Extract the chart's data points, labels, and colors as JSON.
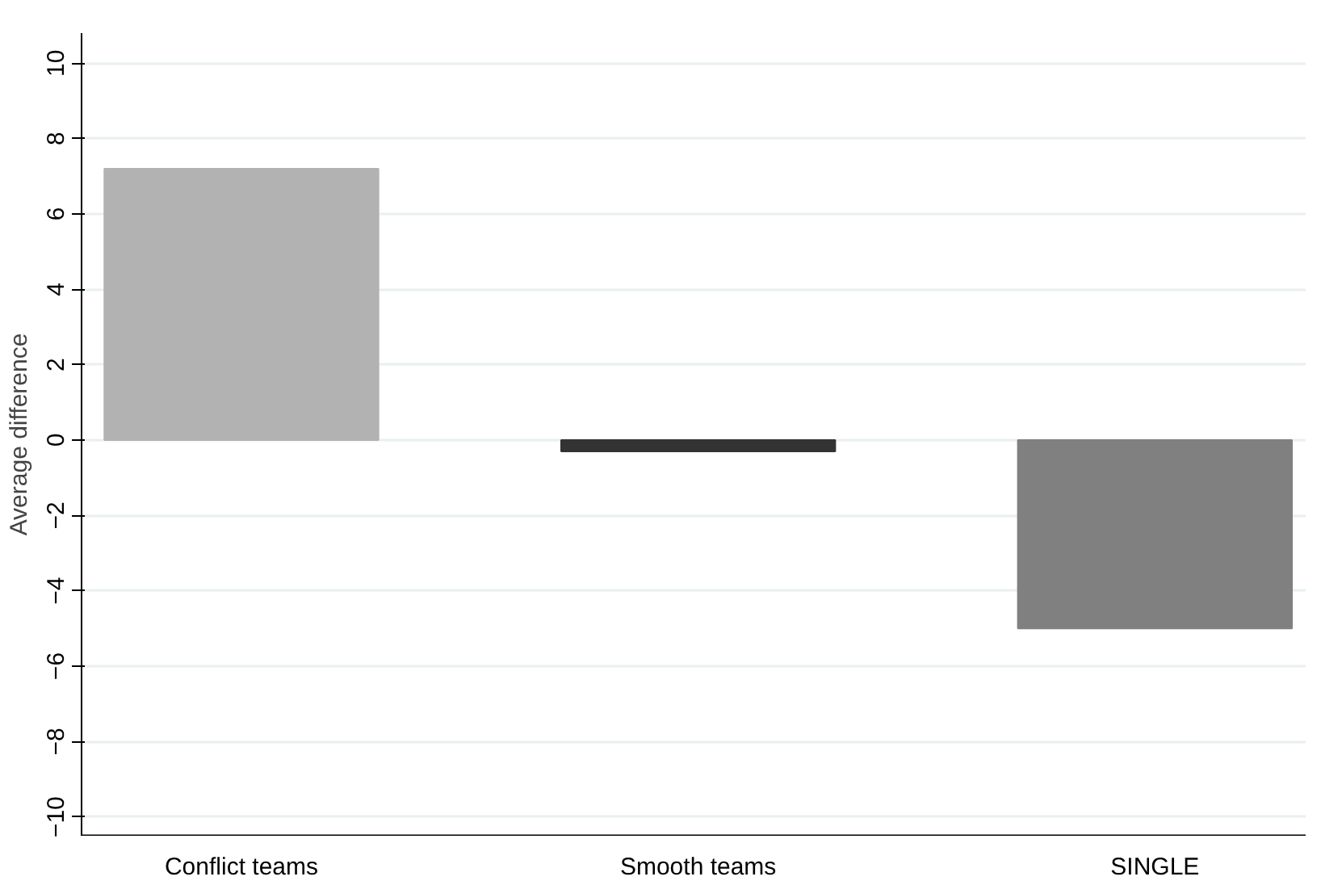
{
  "chart_data": {
    "type": "bar",
    "ylabel": "Average difference",
    "categories": [
      "Conflict teams",
      "Smooth teams",
      "SINGLE"
    ],
    "values": [
      7.2,
      -0.3,
      -5.0
    ],
    "colors": [
      "#b2b2b2",
      "#333333",
      "#808080"
    ],
    "ylim": [
      -10.5,
      10.8
    ],
    "yticks": [
      -10,
      -8,
      -6,
      -4,
      -2,
      0,
      2,
      4,
      6,
      8,
      10
    ],
    "grid": "y"
  }
}
